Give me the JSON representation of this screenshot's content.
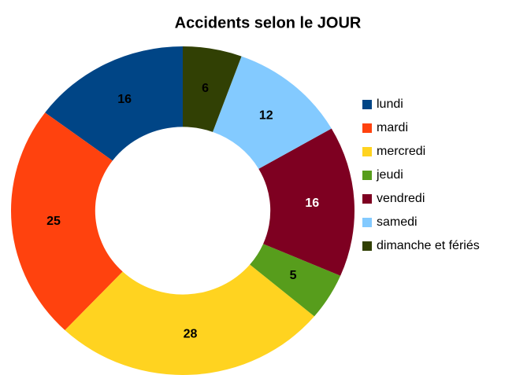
{
  "chart_data": {
    "type": "donut",
    "title": "Accidents selon le JOUR",
    "categories": [
      "lundi",
      "mardi",
      "mercredi",
      "jeudi",
      "vendredi",
      "samedi",
      "dimanche et fériés"
    ],
    "values": [
      16,
      25,
      28,
      5,
      16,
      12,
      6
    ],
    "colors": [
      "#004586",
      "#ff420e",
      "#ffd320",
      "#579d1c",
      "#7e0021",
      "#83caff",
      "#314004"
    ],
    "label_colors": [
      "#000000",
      "#000000",
      "#000000",
      "#000000",
      "#ffffff",
      "#000000",
      "#000000"
    ],
    "legend": "right"
  }
}
